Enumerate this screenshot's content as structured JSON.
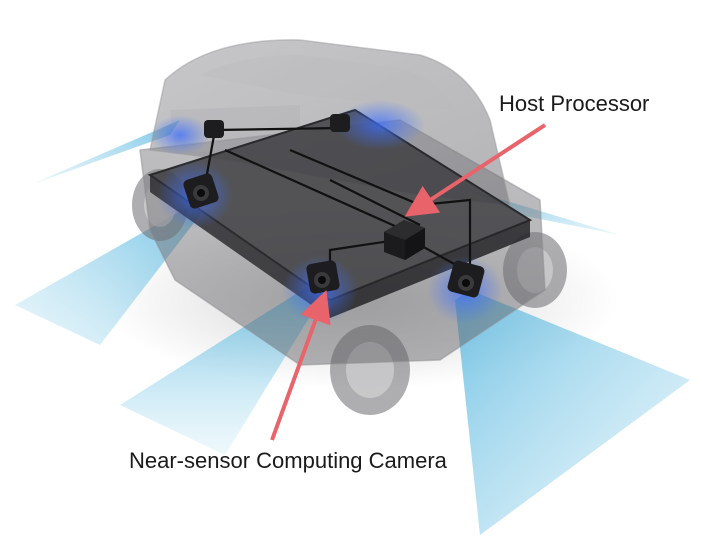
{
  "figure": {
    "description_labels": {
      "host_processor": "Host Processor",
      "camera": "Near-sensor Computing Camera"
    },
    "colors": {
      "arrow": "#e8636a",
      "fov_beam": "#7fc6e2",
      "vehicle_body": "#6e6e72",
      "chassis_board": "#3c3c40",
      "camera_body": "#1d1d1f",
      "wiring": "#111111",
      "glow": "#4a7cff"
    },
    "icons": {
      "camera": "camera-module-icon",
      "processor": "processor-box-icon"
    }
  }
}
